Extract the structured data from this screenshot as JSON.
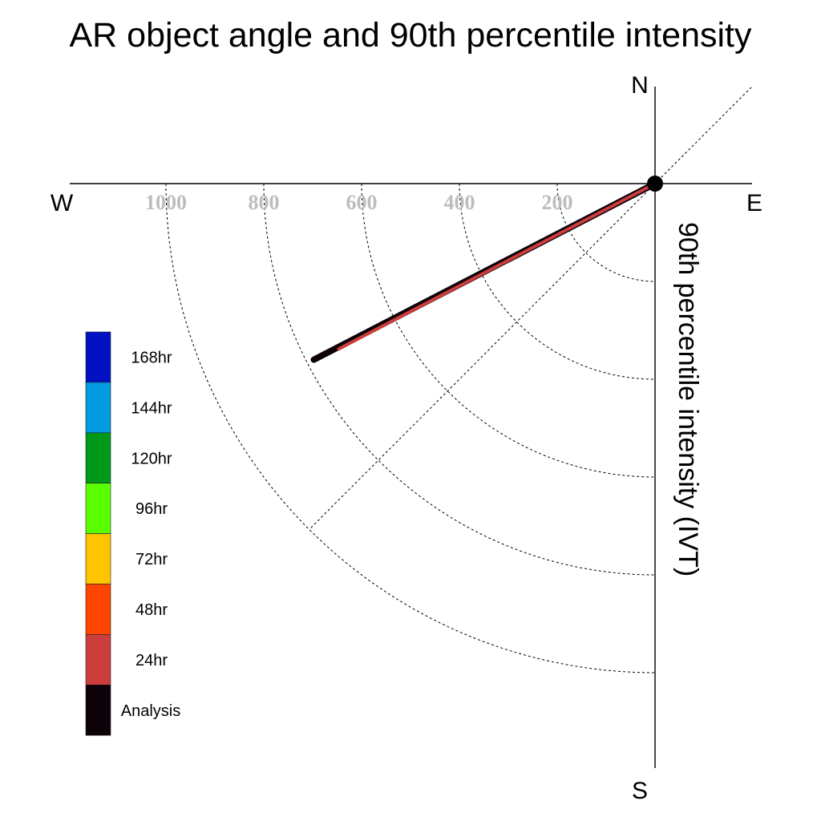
{
  "chart_data": {
    "type": "polar-line",
    "title": "AR object angle and 90th percentile intensity",
    "ylabel": "90th percentile intensity (IVT)",
    "compass": {
      "north": "N",
      "south": "S",
      "east": "E",
      "west": "W"
    },
    "rings": [
      200,
      400,
      600,
      800,
      1000
    ],
    "ring_labels": [
      "1000",
      "800",
      "600",
      "400",
      "200"
    ],
    "r_max": 1200,
    "series": [
      {
        "name": "Analysis",
        "color": "#0d0208",
        "angle_deg": 242.7,
        "intensity": 785
      },
      {
        "name": "24hr",
        "color": "#cc3d3d",
        "angle_deg": 242.4,
        "intensity": 730
      }
    ],
    "legend": [
      {
        "label": "168hr",
        "color": "#0011c2"
      },
      {
        "label": "144hr",
        "color": "#009be1"
      },
      {
        "label": "120hr",
        "color": "#00991a"
      },
      {
        "label": "96hr",
        "color": "#59ff00"
      },
      {
        "label": "72hr",
        "color": "#ffc400"
      },
      {
        "label": "48hr",
        "color": "#ff4400"
      },
      {
        "label": "24hr",
        "color": "#cc3d3d"
      },
      {
        "label": "Analysis",
        "color": "#0d0208"
      }
    ]
  }
}
